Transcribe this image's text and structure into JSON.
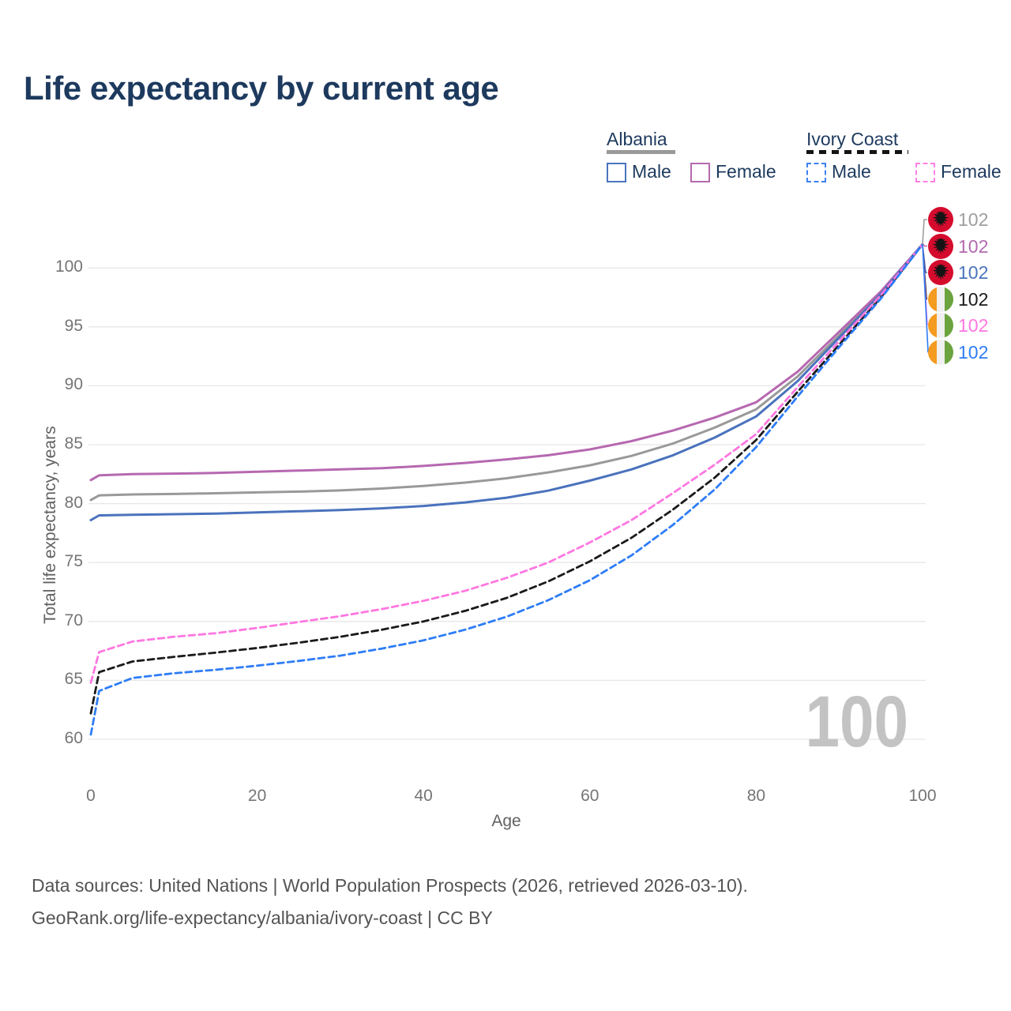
{
  "title": "Life expectancy by current age",
  "watermark_age": "100",
  "legend": {
    "groups": [
      {
        "name": "Albania",
        "line_style": "solid",
        "swatch_color": "#999999",
        "items": [
          {
            "label": "Male",
            "color": "#4a74bd"
          },
          {
            "label": "Female",
            "color": "#b36aae"
          }
        ]
      },
      {
        "name": "Ivory Coast",
        "line_style": "dashed",
        "swatch_color": "#141414",
        "items": [
          {
            "label": "Male",
            "color": "#3b82f0"
          },
          {
            "label": "Female",
            "color": "#ff80e5"
          }
        ]
      }
    ]
  },
  "axes": {
    "x": {
      "label": "Age",
      "ticks": [
        0,
        20,
        40,
        60,
        80,
        100
      ]
    },
    "y": {
      "label": "Total life expectancy, years",
      "ticks": [
        60,
        65,
        70,
        75,
        80,
        85,
        90,
        95,
        100
      ]
    }
  },
  "end_labels": [
    {
      "series": "Albania",
      "flag": "albania",
      "value": "102",
      "color": "#9e9e9e"
    },
    {
      "series": "Albania Female",
      "flag": "albania",
      "value": "102",
      "color": "#b36aae"
    },
    {
      "series": "Albania Male",
      "flag": "albania",
      "value": "102",
      "color": "#4a74bd"
    },
    {
      "series": "Ivory Coast",
      "flag": "ivory-coast",
      "value": "102",
      "color": "#1a1a1a"
    },
    {
      "series": "Ivory Coast Female",
      "flag": "ivory-coast",
      "value": "102",
      "color": "#ff77e1"
    },
    {
      "series": "Ivory Coast Male",
      "flag": "ivory-coast",
      "value": "102",
      "color": "#2e7df6"
    }
  ],
  "footer": {
    "line1": "Data sources: United Nations | World Population Prospects (2026, retrieved 2026-03-10).",
    "line2": "GeoRank.org/life-expectancy/albania/ivory-coast | CC BY"
  },
  "flag_colors": {
    "albania_red": "#d50b2d",
    "albania_eagle": "#141414",
    "ivory_orange": "#f49b20",
    "ivory_white": "#f0f0f0",
    "ivory_green": "#6ba33f"
  },
  "chart_data": {
    "type": "line",
    "title": "Life expectancy by current age",
    "xlabel": "Age",
    "ylabel": "Total life expectancy, years",
    "xlim": [
      0,
      100
    ],
    "ylim": [
      60,
      103
    ],
    "grid": true,
    "legend_position": "top-right",
    "x": [
      0,
      1,
      5,
      10,
      15,
      20,
      25,
      30,
      35,
      40,
      45,
      50,
      55,
      60,
      65,
      70,
      75,
      80,
      85,
      90,
      95,
      100
    ],
    "series": [
      {
        "name": "Albania",
        "country": "Albania",
        "sex": "both",
        "style": "solid",
        "color": "#999999",
        "end_label": 102,
        "values": [
          80.3,
          80.7,
          80.78,
          80.82,
          80.88,
          80.95,
          81.02,
          81.12,
          81.28,
          81.5,
          81.78,
          82.15,
          82.65,
          83.25,
          84.05,
          85.1,
          86.45,
          88.0,
          90.8,
          94.3,
          97.9,
          102
        ]
      },
      {
        "name": "Albania Female",
        "country": "Albania",
        "sex": "female",
        "style": "solid",
        "color": "#b668b0",
        "end_label": 102,
        "values": [
          82.0,
          82.4,
          82.5,
          82.55,
          82.6,
          82.7,
          82.8,
          82.9,
          83.0,
          83.2,
          83.45,
          83.75,
          84.1,
          84.6,
          85.3,
          86.2,
          87.3,
          88.6,
          91.2,
          94.6,
          98.0,
          102
        ]
      },
      {
        "name": "Albania Male",
        "country": "Albania",
        "sex": "male",
        "style": "solid",
        "color": "#4a72bd",
        "end_label": 102,
        "values": [
          78.6,
          79.0,
          79.05,
          79.1,
          79.15,
          79.25,
          79.35,
          79.45,
          79.6,
          79.8,
          80.1,
          80.5,
          81.1,
          81.95,
          82.9,
          84.1,
          85.6,
          87.4,
          90.4,
          94.1,
          97.8,
          102
        ]
      },
      {
        "name": "Ivory Coast",
        "country": "Ivory Coast",
        "sex": "both",
        "style": "dashed",
        "color": "#1a1a1a",
        "end_label": 102,
        "values": [
          62.2,
          65.7,
          66.6,
          67.0,
          67.35,
          67.75,
          68.2,
          68.7,
          69.3,
          70.0,
          70.9,
          72.0,
          73.4,
          75.1,
          77.1,
          79.5,
          82.2,
          85.4,
          89.5,
          93.5,
          97.5,
          102
        ]
      },
      {
        "name": "Ivory Coast Female",
        "country": "Ivory Coast",
        "sex": "female",
        "style": "dashed",
        "color": "#ff77e1",
        "end_label": 102,
        "values": [
          64.8,
          67.4,
          68.3,
          68.7,
          69.0,
          69.45,
          69.95,
          70.45,
          71.05,
          71.75,
          72.6,
          73.7,
          75.0,
          76.7,
          78.6,
          80.9,
          83.3,
          85.9,
          89.9,
          93.8,
          97.7,
          102
        ]
      },
      {
        "name": "Ivory Coast Male",
        "country": "Ivory Coast",
        "sex": "male",
        "style": "dashed",
        "color": "#2e7df6",
        "end_label": 102,
        "values": [
          60.4,
          64.1,
          65.2,
          65.6,
          65.9,
          66.25,
          66.65,
          67.1,
          67.7,
          68.4,
          69.3,
          70.4,
          71.8,
          73.5,
          75.6,
          78.2,
          81.2,
          84.8,
          89.1,
          93.3,
          97.4,
          102
        ]
      }
    ]
  }
}
